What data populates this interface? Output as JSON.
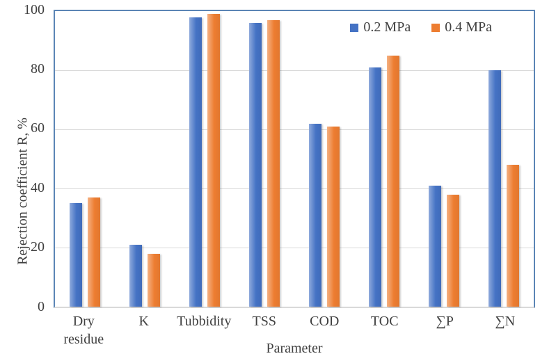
{
  "chart_data": {
    "type": "bar",
    "title": "",
    "xlabel": "Parameter",
    "ylabel": "Rejection coefficient R, %",
    "categories": [
      "Dry residue",
      "K",
      "Tubbidity",
      "TSS",
      "COD",
      "TOC",
      "∑P",
      "∑N"
    ],
    "series": [
      {
        "name": "0.2 MPa",
        "color": "#4472C4",
        "values": [
          35,
          21,
          98,
          96,
          62,
          81,
          41,
          80
        ]
      },
      {
        "name": "0.4 MPa",
        "color": "#ED7D31",
        "values": [
          37,
          18,
          99,
          97,
          61,
          85,
          38,
          48
        ]
      }
    ],
    "ylim": [
      0,
      100
    ],
    "yticks": [
      0,
      20,
      40,
      60,
      80,
      100
    ],
    "grid": "horizontal",
    "legend_position": "top-right-inside",
    "colors": {
      "plot_border": "#5b85b5",
      "gridline": "#d9d9d9",
      "axis_line": "#d9d9d9",
      "text": "#404040"
    }
  }
}
